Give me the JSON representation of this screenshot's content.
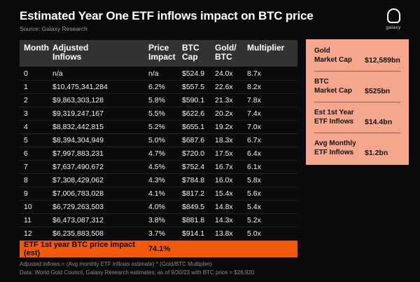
{
  "header": {
    "title": "Estimated Year One ETF inflows impact on BTC price",
    "source": "Source: Galaxy Research",
    "logo_label": "galaxy"
  },
  "chart_data": {
    "type": "table",
    "title": "Estimated Year One ETF inflows impact on BTC price",
    "columns": [
      "Month",
      "Adjusted\nInflows",
      "Price\nImpact",
      "BTC\nCap",
      "Gold/\nBTC",
      "Multiplier"
    ],
    "rows": [
      [
        "0",
        "n/a",
        "n/a",
        "$524.9",
        "24.0x",
        "8.7x"
      ],
      [
        "1",
        "$10,475,341,284",
        "6.2%",
        "$557.5",
        "22.6x",
        "8.2x"
      ],
      [
        "2",
        "$9,863,303,128",
        "5.8%",
        "$590.1",
        "21.3x",
        "7.8x"
      ],
      [
        "3",
        "$9,319,247,167",
        "5.5%",
        "$622.6",
        "20.2x",
        "7.4x"
      ],
      [
        "4",
        "$8,832,442,815",
        "5.2%",
        "$655.1",
        "19.2x",
        "7.0x"
      ],
      [
        "5",
        "$8,394,304,949",
        "5.0%",
        "$687.6",
        "18.3x",
        "6.7x"
      ],
      [
        "6",
        "$7,997,883,231",
        "4.7%",
        "$720.0",
        "17.5x",
        "6.4x"
      ],
      [
        "7",
        "$7,637,490,672",
        "4.5%",
        "$752.4",
        "16.7x",
        "6.1x"
      ],
      [
        "8",
        "$7,308,429,062",
        "4.3%",
        "$784.8",
        "16.0x",
        "5.8x"
      ],
      [
        "9",
        "$7,006,783,028",
        "4.1%",
        "$817.2",
        "15.4x",
        "5.6x"
      ],
      [
        "10",
        "$6,729,263,503",
        "4.0%",
        "$849.5",
        "14.8x",
        "5.4x"
      ],
      [
        "11",
        "$6,473,087,312",
        "3.8%",
        "$881.8",
        "14.3x",
        "5.2x"
      ],
      [
        "12",
        "$6,235,883,508",
        "3.7%",
        "$914.1",
        "13.8x",
        "5.0x"
      ]
    ],
    "summary_row": {
      "label": "ETF 1st year BTC price impact (est)",
      "value": "74.1%"
    }
  },
  "sidebar": {
    "items": [
      {
        "label": "Gold\nMarket Cap",
        "value": "$12,589bn"
      },
      {
        "label": "BTC\nMarket Cap",
        "value": "$525bn"
      },
      {
        "label": "Est 1st Year\nETF Inflows",
        "value": "$14.4bn"
      },
      {
        "label": "Avg Monthly\nETF Inflows",
        "value": "$1.2bn"
      }
    ]
  },
  "footnotes": {
    "line1": "Adjusted inflows = (Avg monthly ETF inflows estimate) * (Gold/BTC Multiplier)",
    "line2": "Data: World Gold Council, Galaxy Research estimates; as of 9/30/23 with BTC price = $26,920"
  },
  "colors": {
    "background": "#0a0a0a",
    "accent_orange": "#f15a0e",
    "sidebar_salmon": "#f4a78c",
    "table_header_gray": "#323232"
  }
}
